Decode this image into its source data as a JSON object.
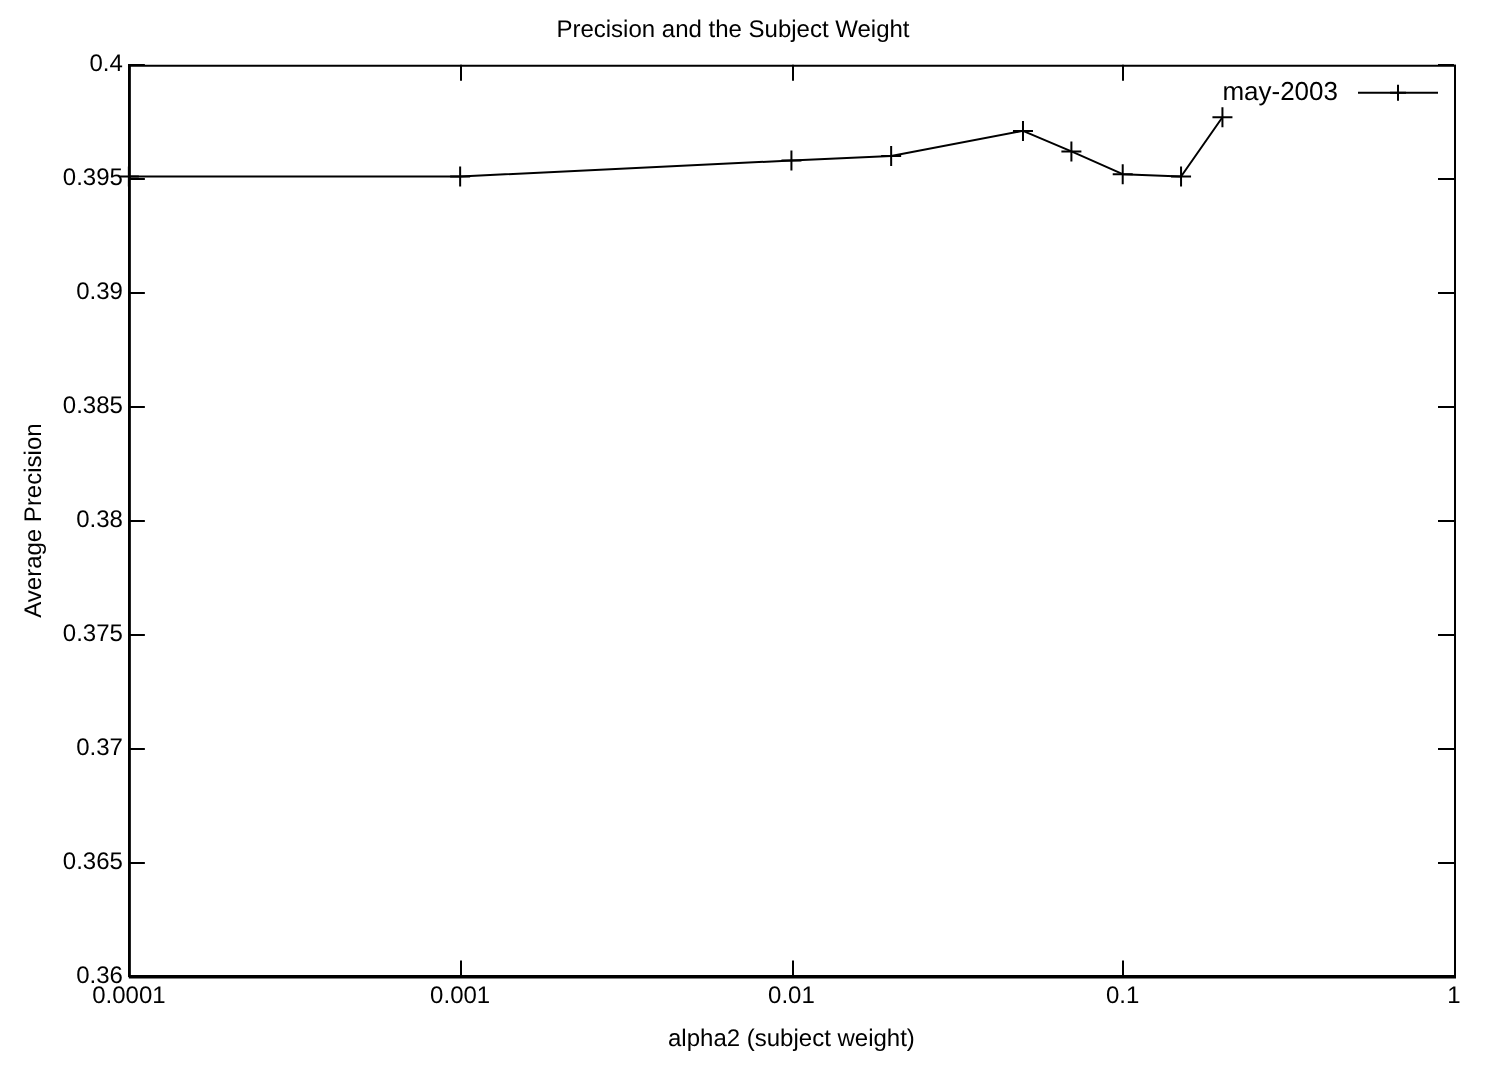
{
  "chart_data": {
    "type": "line",
    "title": "Precision and the Subject Weight",
    "xlabel": "alpha2 (subject weight)",
    "ylabel": "Average Precision",
    "log": "x",
    "grid": false,
    "legend": "top right",
    "marker": "cross",
    "line_style": "solid",
    "xlim": [
      0.0001,
      1
    ],
    "xticks": [
      0.0001,
      0.001,
      0.01,
      0.1,
      1
    ],
    "ylim": [
      0.36,
      0.4
    ],
    "yticks": [
      0.36,
      0.365,
      0.37,
      0.375,
      0.38,
      0.385,
      0.39,
      0.395,
      0.4
    ],
    "series": [
      {
        "name": "may-2003",
        "color": "#000000",
        "x": [
          0.0001,
          0.001,
          0.01,
          0.02,
          0.05,
          0.07,
          0.1,
          0.15,
          0.2
        ],
        "values": [
          0.3951,
          0.3951,
          0.3958,
          0.396,
          0.3971,
          0.3962,
          0.3952,
          0.3951,
          0.3977
        ]
      }
    ]
  }
}
